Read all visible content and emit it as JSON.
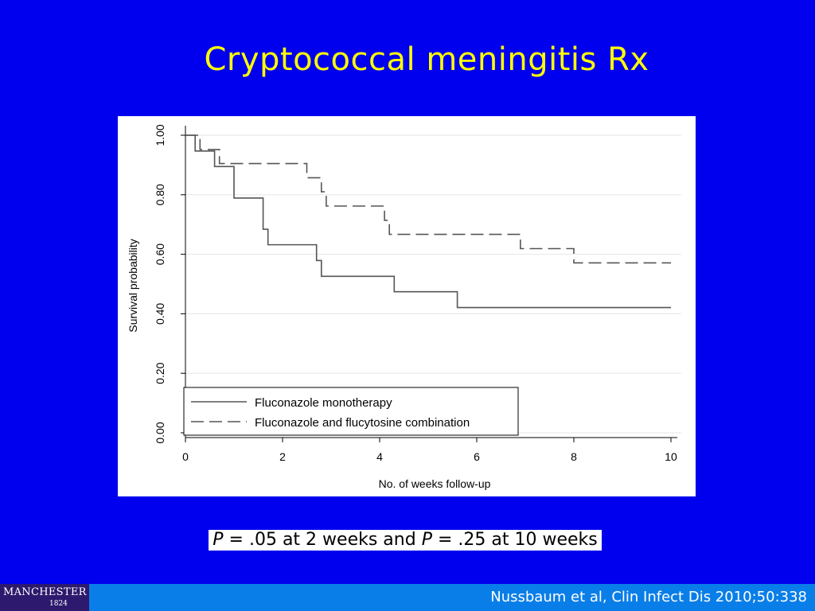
{
  "slide": {
    "title": "Cryptococcal meningitis Rx",
    "pvalue": {
      "p1": "P",
      "text1": " = .05 at 2 weeks and ",
      "p2": "P",
      "text2": " = .25 at 10 weeks"
    },
    "citation": "Nussbaum et al, Clin Infect Dis 2010;50:338",
    "logo": {
      "name": "MANCHESTER",
      "year": "1824"
    }
  },
  "colors": {
    "background": "#0000ee",
    "title": "#ffff00",
    "footer": "#0a7ee8",
    "logo": "#2d1a6e",
    "series": "#555555",
    "grid": "#e6e6e6"
  },
  "chart_data": {
    "type": "line",
    "subtype": "kaplan-meier step",
    "xlabel": "No. of weeks follow-up",
    "ylabel": "Survival probability",
    "xlim": [
      0,
      10
    ],
    "ylim": [
      0,
      1
    ],
    "xticks": [
      "0",
      "2",
      "4",
      "6",
      "8",
      "10"
    ],
    "yticks": [
      "0.00",
      "0.20",
      "0.40",
      "0.60",
      "0.80",
      "1.00"
    ],
    "grid": true,
    "legend_position": "bottom-left",
    "series": [
      {
        "name": "Fluconazole monotherapy",
        "style": "solid",
        "steps": [
          [
            0,
            1.0
          ],
          [
            0.2,
            0.947
          ],
          [
            0.6,
            0.895
          ],
          [
            1.0,
            0.789
          ],
          [
            1.6,
            0.684
          ],
          [
            1.7,
            0.632
          ],
          [
            2.7,
            0.579
          ],
          [
            2.8,
            0.526
          ],
          [
            4.3,
            0.474
          ],
          [
            5.6,
            0.421
          ],
          [
            10.0,
            0.421
          ]
        ]
      },
      {
        "name": "Fluconazole and flucytosine combination",
        "style": "dashed",
        "steps": [
          [
            0,
            1.0
          ],
          [
            0.3,
            0.952
          ],
          [
            0.7,
            0.905
          ],
          [
            2.5,
            0.857
          ],
          [
            2.8,
            0.81
          ],
          [
            2.9,
            0.762
          ],
          [
            4.1,
            0.714
          ],
          [
            4.2,
            0.667
          ],
          [
            6.9,
            0.619
          ],
          [
            8.0,
            0.571
          ],
          [
            10.0,
            0.571
          ]
        ]
      }
    ]
  }
}
